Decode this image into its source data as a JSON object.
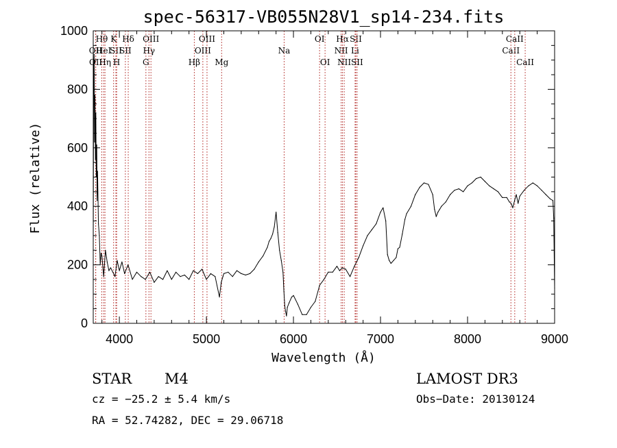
{
  "chart_data": {
    "type": "line",
    "title": "spec-56317-VB055N28V1_sp14-234.fits",
    "xlabel": "Wavelength (Å)",
    "ylabel": "Flux (relative)",
    "xlim": [
      3700,
      9000
    ],
    "ylim": [
      0,
      1000
    ],
    "xticks": [
      4000,
      5000,
      6000,
      7000,
      8000,
      9000
    ],
    "yticks": [
      0,
      200,
      400,
      600,
      800,
      1000
    ],
    "grid": false,
    "series": [
      {
        "color": "#000000",
        "x": [
          3700,
          3705,
          3710,
          3715,
          3720,
          3725,
          3730,
          3735,
          3740,
          3745,
          3750,
          3760,
          3770,
          3780,
          3790,
          3800,
          3820,
          3840,
          3860,
          3880,
          3900,
          3925,
          3950,
          3975,
          4000,
          4030,
          4060,
          4100,
          4150,
          4200,
          4250,
          4300,
          4350,
          4400,
          4450,
          4500,
          4550,
          4600,
          4650,
          4700,
          4750,
          4800,
          4850,
          4900,
          4950,
          5000,
          5050,
          5100,
          5150,
          5170,
          5190,
          5200,
          5250,
          5300,
          5350,
          5400,
          5450,
          5500,
          5550,
          5600,
          5650,
          5700,
          5720,
          5740,
          5760,
          5780,
          5800,
          5820,
          5840,
          5860,
          5880,
          5890,
          5900,
          5910,
          5920,
          5930,
          5950,
          5980,
          6000,
          6050,
          6100,
          6150,
          6200,
          6250,
          6300,
          6350,
          6400,
          6450,
          6500,
          6530,
          6560,
          6600,
          6650,
          6700,
          6750,
          6800,
          6850,
          6900,
          6950,
          7000,
          7030,
          7060,
          7080,
          7100,
          7120,
          7150,
          7180,
          7200,
          7220,
          7250,
          7280,
          7300,
          7350,
          7400,
          7450,
          7500,
          7550,
          7600,
          7620,
          7640,
          7660,
          7680,
          7700,
          7750,
          7800,
          7850,
          7900,
          7950,
          8000,
          8050,
          8100,
          8150,
          8200,
          8250,
          8300,
          8350,
          8400,
          8450,
          8480,
          8500,
          8520,
          8540,
          8560,
          8580,
          8600,
          8650,
          8700,
          8750,
          8800,
          8850,
          8900,
          8950,
          8980,
          8990,
          9000
        ],
        "values": [
          250,
          850,
          920,
          620,
          780,
          560,
          720,
          500,
          610,
          420,
          520,
          340,
          300,
          200,
          240,
          230,
          160,
          250,
          210,
          180,
          190,
          175,
          160,
          215,
          180,
          210,
          170,
          200,
          150,
          175,
          160,
          150,
          175,
          140,
          160,
          150,
          180,
          150,
          175,
          160,
          165,
          150,
          180,
          170,
          185,
          150,
          170,
          160,
          90,
          140,
          160,
          170,
          175,
          160,
          180,
          170,
          165,
          170,
          185,
          210,
          230,
          260,
          280,
          290,
          305,
          330,
          380,
          310,
          250,
          215,
          175,
          110,
          60,
          40,
          25,
          55,
          70,
          90,
          95,
          65,
          30,
          30,
          55,
          75,
          130,
          150,
          175,
          175,
          195,
          180,
          190,
          185,
          160,
          195,
          225,
          265,
          300,
          320,
          340,
          380,
          395,
          350,
          235,
          215,
          205,
          215,
          225,
          255,
          260,
          305,
          355,
          375,
          400,
          440,
          465,
          480,
          475,
          440,
          390,
          365,
          380,
          390,
          400,
          415,
          440,
          455,
          460,
          450,
          470,
          480,
          495,
          500,
          485,
          470,
          460,
          450,
          430,
          430,
          415,
          410,
          395,
          420,
          440,
          410,
          435,
          455,
          470,
          480,
          470,
          455,
          440,
          425,
          420,
          360,
          120
        ]
      }
    ],
    "spectral_lines": [
      {
        "label": "OII",
        "wavelength": 3727,
        "row": 1
      },
      {
        "label": "OII",
        "wavelength": 3729,
        "row": 2
      },
      {
        "label": "Hθ",
        "wavelength": 3798,
        "row": 0
      },
      {
        "label": "HeI",
        "wavelength": 3820,
        "row": 1
      },
      {
        "label": "Hη",
        "wavelength": 3835,
        "row": 2
      },
      {
        "label": "K",
        "wavelength": 3934,
        "row": 0
      },
      {
        "label": "SII",
        "wavelength": 3960,
        "row": 1
      },
      {
        "label": "H",
        "wavelength": 3969,
        "row": 2
      },
      {
        "label": "Hδ",
        "wavelength": 4102,
        "row": 0
      },
      {
        "label": "SII",
        "wavelength": 4069,
        "row": 1
      },
      {
        "label": "G",
        "wavelength": 4305,
        "row": 2
      },
      {
        "label": "Hγ",
        "wavelength": 4340,
        "row": 1
      },
      {
        "label": "OIII",
        "wavelength": 4363,
        "row": 0
      },
      {
        "label": "Hβ",
        "wavelength": 4861,
        "row": 2
      },
      {
        "label": "OIII",
        "wavelength": 4959,
        "row": 1
      },
      {
        "label": "OIII",
        "wavelength": 5007,
        "row": 0
      },
      {
        "label": "Mg",
        "wavelength": 5175,
        "row": 2
      },
      {
        "label": "Na",
        "wavelength": 5893,
        "row": 1
      },
      {
        "label": "OI",
        "wavelength": 6300,
        "row": 0
      },
      {
        "label": "OI",
        "wavelength": 6363,
        "row": 2
      },
      {
        "label": "NII",
        "wavelength": 6548,
        "row": 1
      },
      {
        "label": "Hα",
        "wavelength": 6563,
        "row": 0
      },
      {
        "label": "NII",
        "wavelength": 6583,
        "row": 2
      },
      {
        "label": "SII",
        "wavelength": 6716,
        "row": 0
      },
      {
        "label": "Li",
        "wavelength": 6708,
        "row": 1
      },
      {
        "label": "SII",
        "wavelength": 6731,
        "row": 2
      },
      {
        "label": "CaII",
        "wavelength": 8498,
        "row": 1
      },
      {
        "label": "CaII",
        "wavelength": 8542,
        "row": 0
      },
      {
        "label": "CaII",
        "wavelength": 8662,
        "row": 2
      }
    ]
  },
  "info": {
    "object_class": "STAR",
    "subclass": "M4",
    "survey": "LAMOST DR3",
    "cz": "cz = −25.2 ± 5.4 km/s",
    "obs_date": "Obs−Date: 20130124",
    "coords": "RA =  52.74282, DEC =  29.06718"
  },
  "colors": {
    "line_marker": "#c0504d",
    "spectrum": "#000000"
  }
}
